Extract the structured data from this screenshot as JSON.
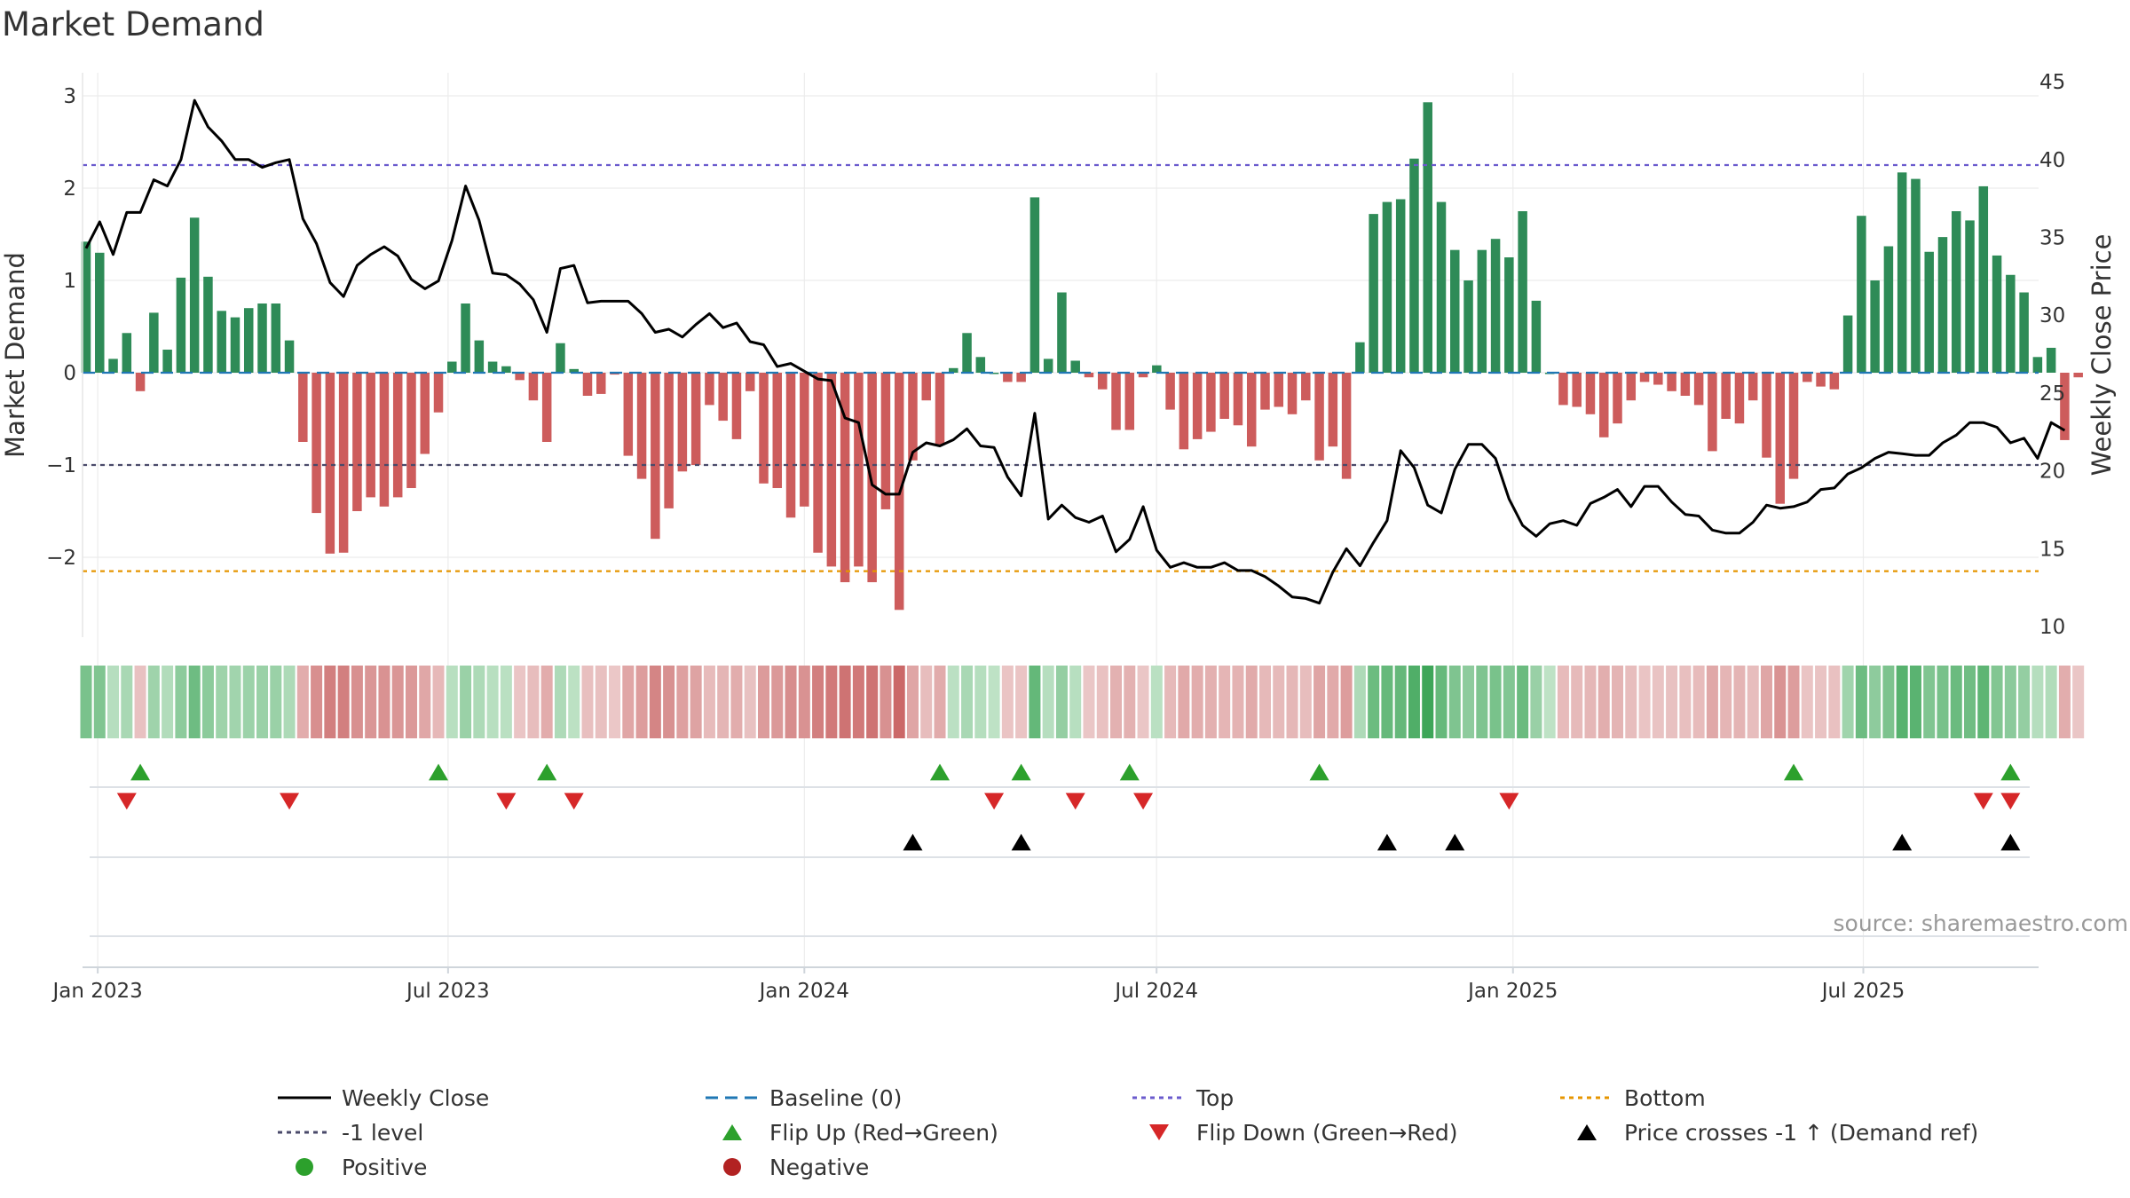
{
  "chart_data": {
    "type": "bar+line",
    "title": "Market Demand",
    "ylabel_left": "Market Demand",
    "ylabel_right": "Weekly Close Price",
    "ylim_left": [
      -2.9,
      3.2
    ],
    "yticks_left": [
      3,
      2,
      1,
      0,
      -1,
      -2
    ],
    "ytick_labels_left": [
      "3",
      "2",
      "1",
      "0",
      "−1",
      "−2"
    ],
    "ylim_right": [
      10,
      45
    ],
    "yticks_right": [
      45,
      40,
      35,
      30,
      25,
      20,
      15,
      10
    ],
    "x_start": "2022-12-26",
    "xticks": [
      {
        "label": "Jan 2023",
        "week": 0.86
      },
      {
        "label": "Jul 2023",
        "week": 26.71
      },
      {
        "label": "Jan 2024",
        "week": 53.0
      },
      {
        "label": "Jul 2024",
        "week": 78.99
      },
      {
        "label": "Jan 2025",
        "week": 105.29
      },
      {
        "label": "Jul 2025",
        "week": 131.14
      }
    ],
    "demand": [
      1.42,
      1.3,
      0.15,
      0.43,
      -0.2,
      0.65,
      0.25,
      1.03,
      1.68,
      1.04,
      0.67,
      0.6,
      0.7,
      0.75,
      0.75,
      0.35,
      -0.75,
      -1.52,
      -1.96,
      -1.95,
      -1.5,
      -1.35,
      -1.45,
      -1.35,
      -1.25,
      -0.88,
      -0.43,
      0.12,
      0.75,
      0.35,
      0.12,
      0.07,
      -0.08,
      -0.3,
      -0.75,
      0.32,
      0.04,
      -0.25,
      -0.23,
      -0.02,
      -0.9,
      -1.15,
      -1.8,
      -1.47,
      -1.07,
      -1.0,
      -0.35,
      -0.52,
      -0.72,
      -0.2,
      -1.2,
      -1.25,
      -1.57,
      -1.45,
      -1.95,
      -2.1,
      -2.27,
      -2.1,
      -2.27,
      -1.48,
      -2.57,
      -0.95,
      -0.3,
      -0.78,
      0.05,
      0.43,
      0.17,
      0.0,
      -0.1,
      -0.1,
      1.9,
      0.15,
      0.87,
      0.13,
      -0.05,
      -0.18,
      -0.62,
      -0.62,
      -0.05,
      0.08,
      -0.4,
      -0.83,
      -0.72,
      -0.64,
      -0.5,
      -0.57,
      -0.8,
      -0.4,
      -0.37,
      -0.45,
      -0.3,
      -0.95,
      -0.8,
      -1.15,
      0.33,
      1.72,
      1.85,
      1.88,
      2.32,
      2.93,
      1.85,
      1.33,
      1.0,
      1.33,
      1.45,
      1.25,
      1.75,
      0.78,
      0.0,
      -0.35,
      -0.37,
      -0.45,
      -0.7,
      -0.55,
      -0.3,
      -0.1,
      -0.13,
      -0.2,
      -0.25,
      -0.35,
      -0.85,
      -0.5,
      -0.55,
      -0.3,
      -0.92,
      -1.42,
      -1.15,
      -0.1,
      -0.15,
      -0.18,
      0.62,
      1.7,
      1.0,
      1.37,
      2.17,
      2.1,
      1.31,
      1.47,
      1.75,
      1.65,
      2.02,
      1.27,
      1.06,
      0.87,
      0.17,
      0.27,
      -0.73,
      -0.05
    ],
    "close": [
      34.3,
      36.0,
      33.9,
      36.6,
      36.6,
      38.7,
      38.3,
      40.0,
      43.8,
      42.1,
      41.2,
      40.0,
      40.0,
      39.5,
      39.8,
      40.0,
      36.2,
      34.6,
      32.1,
      31.2,
      33.2,
      33.9,
      34.4,
      33.8,
      32.3,
      31.7,
      32.2,
      34.8,
      38.3,
      36.1,
      32.7,
      32.6,
      32.0,
      31.0,
      28.9,
      33.0,
      33.2,
      30.8,
      30.9,
      30.9,
      30.9,
      30.1,
      28.9,
      29.1,
      28.6,
      29.4,
      30.1,
      29.2,
      29.5,
      28.3,
      28.1,
      26.7,
      26.9,
      26.4,
      25.9,
      25.8,
      23.4,
      23.1,
      19.1,
      18.5,
      18.5,
      21.2,
      21.8,
      21.6,
      22.0,
      22.7,
      21.6,
      21.5,
      19.6,
      18.4,
      23.7,
      16.9,
      17.8,
      17.0,
      16.7,
      17.1,
      14.8,
      15.6,
      17.7,
      14.9,
      13.8,
      14.1,
      13.8,
      13.8,
      14.1,
      13.6,
      13.6,
      13.2,
      12.6,
      11.9,
      11.8,
      11.5,
      13.5,
      15.0,
      13.9,
      15.4,
      16.8,
      21.3,
      20.2,
      17.8,
      17.3,
      20.1,
      21.7,
      21.7,
      20.8,
      18.2,
      16.5,
      15.8,
      16.6,
      16.8,
      16.5,
      17.9,
      18.3,
      18.8,
      17.7,
      19.0,
      19.0,
      18.0,
      17.2,
      17.1,
      16.2,
      16.0,
      16.0,
      16.7,
      17.8,
      17.6,
      17.7,
      18.0,
      18.8,
      18.9,
      19.8,
      20.2,
      20.8,
      21.2,
      21.1,
      21.0,
      21.0,
      21.8,
      22.3,
      23.1,
      23.1,
      22.8,
      21.8,
      22.1,
      20.8,
      23.1,
      22.6
    ],
    "reference_lines": [
      {
        "name": "Baseline (0)",
        "value": 0,
        "color": "#1f77b4",
        "style": "dashed"
      },
      {
        "name": "Top",
        "value": 2.25,
        "color": "#6a5acd",
        "style": "dotted"
      },
      {
        "name": "-1 level",
        "value": -1,
        "color": "#4a4a6a",
        "style": "dotted"
      },
      {
        "name": "Bottom",
        "value": -2.15,
        "color": "#e69500",
        "style": "dotted"
      }
    ],
    "flip_up_weeks": [
      4,
      26,
      34,
      63,
      69,
      77,
      91,
      126,
      142
    ],
    "flip_down_weeks": [
      3,
      15,
      31,
      36,
      67,
      73,
      78,
      105,
      140,
      142
    ],
    "price_cross_weeks": [
      61,
      69,
      96,
      101,
      134,
      142
    ],
    "colors": {
      "positive": "#2e8b57",
      "negative": "#cd5c5c",
      "line": "#000000",
      "flip_up": "#2ca02c",
      "flip_down": "#d62728",
      "cross": "#000000",
      "positive_dot": "#2ca02c",
      "negative_dot": "#b22222"
    }
  },
  "legend": [
    {
      "label": "Weekly Close",
      "symbol": "line-solid",
      "color": "#000000"
    },
    {
      "label": "Baseline (0)",
      "symbol": "line-dashed",
      "color": "#1f77b4"
    },
    {
      "label": "Top",
      "symbol": "line-dotted",
      "color": "#6a5acd"
    },
    {
      "label": "Bottom",
      "symbol": "line-dotted",
      "color": "#e69500"
    },
    {
      "label": "-1 level",
      "symbol": "line-dotted",
      "color": "#4a4a6a"
    },
    {
      "label": "Flip Up (Red→Green)",
      "symbol": "triangle-up",
      "color": "#2ca02c"
    },
    {
      "label": "Flip Down (Green→Red)",
      "symbol": "triangle-down",
      "color": "#d62728"
    },
    {
      "label": "Price crosses -1 ↑ (Demand ref)",
      "symbol": "triangle-up",
      "color": "#000000"
    },
    {
      "label": "Positive",
      "symbol": "dot",
      "color": "#2ca02c"
    },
    {
      "label": "Negative",
      "symbol": "dot",
      "color": "#b22222"
    }
  ],
  "source": "source: sharemaestro.com"
}
